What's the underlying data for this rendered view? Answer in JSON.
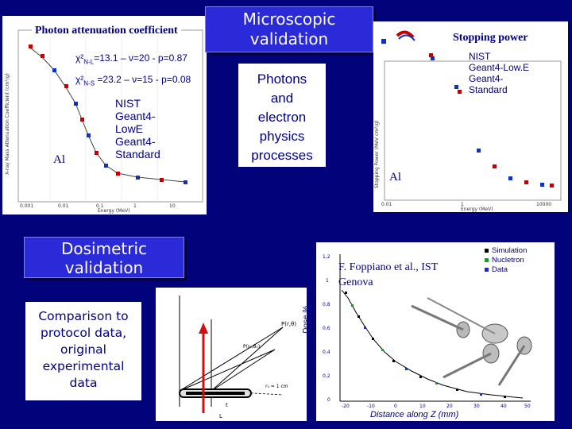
{
  "slide": {
    "background": "#02027a",
    "accent": "#2a2ad8"
  },
  "photon": {
    "title": "Photon attenuation coefficient",
    "chi_nl_label": "χ²",
    "chi_nl_sub": "N-L",
    "chi_nl_text": "=13.1 – ν=20 - p=0.87",
    "chi_ns_label": "χ²",
    "chi_ns_sub": "N-S",
    "chi_ns_text": " =23.2 – ν=15 - p=0.08",
    "material": "Al",
    "legend": [
      "NIST",
      "Geant4-",
      "LowE",
      "Geant4-",
      "Standard"
    ],
    "axis_x": "Energy (MeV)",
    "axis_y": "X-ray Mass Attenuation Coefficient (cm²/g)",
    "ticks_x": [
      "0.001",
      "0.01",
      "0.1",
      "1",
      "10"
    ]
  },
  "microscopic": {
    "line1": "Microscopic",
    "line2": "validation"
  },
  "photons_box": {
    "line1": "Photons",
    "line2": "and",
    "line3": "electron",
    "line4": "physics",
    "line5": "processes"
  },
  "stopping": {
    "title": "Stopping power",
    "legend_nist": "NIST",
    "legend_lowe": "Geant4-Low.E",
    "legend_g4": "Geant4-",
    "legend_std": "Standard",
    "material": "Al",
    "axis_x": "Energy (MeV)",
    "axis_y": "Stopping Power (MeV cm²/g)",
    "ticks_x": [
      "0.01",
      "1",
      "10000"
    ]
  },
  "dosimetric": {
    "line1": "Dosimetric",
    "line2": "validation"
  },
  "comparison": {
    "line1": "Comparison to",
    "line2": "protocol data,",
    "line3": "original",
    "line4": "experimental",
    "line5": "data"
  },
  "dose_plot": {
    "citation_line1": "F. Foppiano et al., IST",
    "citation_line2": "Genova",
    "ylabel": "Dose %",
    "xlabel": "Distance along Z (mm)",
    "legend": [
      "Simulation",
      "Nucletron",
      "Data"
    ],
    "yticks": [
      "1,2",
      "1",
      "0,8",
      "0,6",
      "0,4",
      "0,2",
      "0"
    ],
    "xticks": [
      "-20",
      "-10",
      "0",
      "10",
      "20",
      "30",
      "40",
      "50"
    ]
  },
  "diagram": {
    "label_p": "P(r,θ)",
    "label_p2": "P(r₀,θ₀)",
    "label_r0": "r₀ = 1 cm",
    "label_t": "t",
    "label_l": "L"
  }
}
